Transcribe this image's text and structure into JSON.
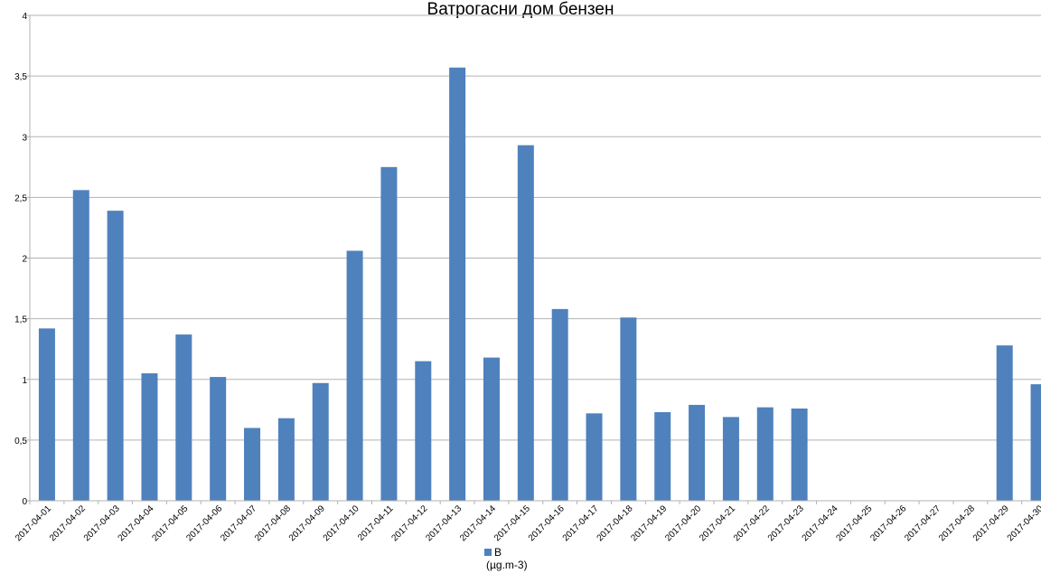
{
  "chart_data": {
    "type": "bar",
    "title": "Ватрогасни дом  бензен",
    "categories": [
      "2017-04-01",
      "2017-04-02",
      "2017-04-03",
      "2017-04-04",
      "2017-04-05",
      "2017-04-06",
      "2017-04-07",
      "2017-04-08",
      "2017-04-09",
      "2017-04-10",
      "2017-04-11",
      "2017-04-12",
      "2017-04-13",
      "2017-04-14",
      "2017-04-15",
      "2017-04-16",
      "2017-04-17",
      "2017-04-18",
      "2017-04-19",
      "2017-04-20",
      "2017-04-21",
      "2017-04-22",
      "2017-04-23",
      "2017-04-24",
      "2017-04-25",
      "2017-04-26",
      "2017-04-27",
      "2017-04-28",
      "2017-04-29",
      "2017-04-30"
    ],
    "series": [
      {
        "name": "B",
        "unit": "(µg.m-3)",
        "color": "#4f81bd",
        "values": [
          1.42,
          2.56,
          2.39,
          1.05,
          1.37,
          1.02,
          0.6,
          0.68,
          0.97,
          2.06,
          2.75,
          1.15,
          3.57,
          1.18,
          2.93,
          1.58,
          0.72,
          1.51,
          0.73,
          0.79,
          0.69,
          0.77,
          0.76,
          null,
          null,
          null,
          null,
          null,
          1.28,
          0.96
        ]
      }
    ],
    "ylim": [
      0,
      4
    ],
    "yticks": [
      0,
      0.5,
      1,
      1.5,
      2,
      2.5,
      3,
      3.5,
      4
    ],
    "ytick_labels": [
      "0",
      "0,5",
      "1",
      "1,5",
      "2",
      "2,5",
      "3",
      "3,5",
      "4"
    ],
    "xlabel": "",
    "ylabel": "",
    "grid": true,
    "legend_position": "bottom"
  }
}
